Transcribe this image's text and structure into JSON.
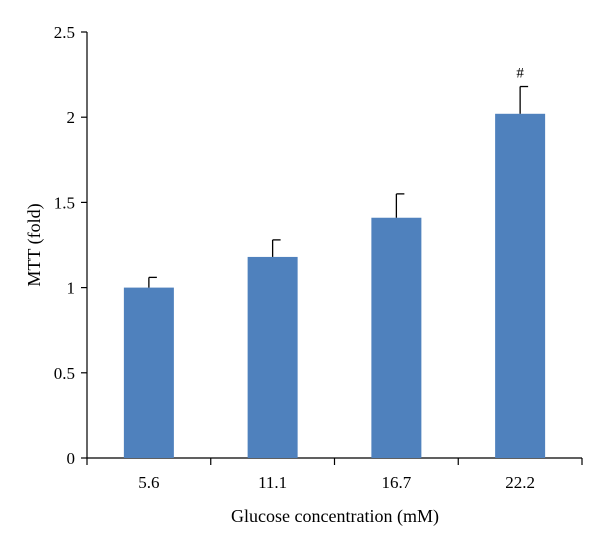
{
  "chart_data": {
    "type": "bar",
    "categories": [
      "5.6",
      "11.1",
      "16.7",
      "22.2"
    ],
    "values": [
      1.0,
      1.18,
      1.41,
      2.02
    ],
    "errors": [
      0.06,
      0.1,
      0.14,
      0.16
    ],
    "annotations": [
      "",
      "",
      "",
      "#"
    ],
    "xlabel": "Glucose concentration (mM)",
    "ylabel": "MTT (fold)",
    "ylim": [
      0,
      2.5
    ],
    "yticks": [
      "0",
      "0.5",
      "1",
      "1.5",
      "2",
      "2.5"
    ],
    "bar_color": "#4f81bd",
    "grid": false,
    "legend": "none"
  }
}
